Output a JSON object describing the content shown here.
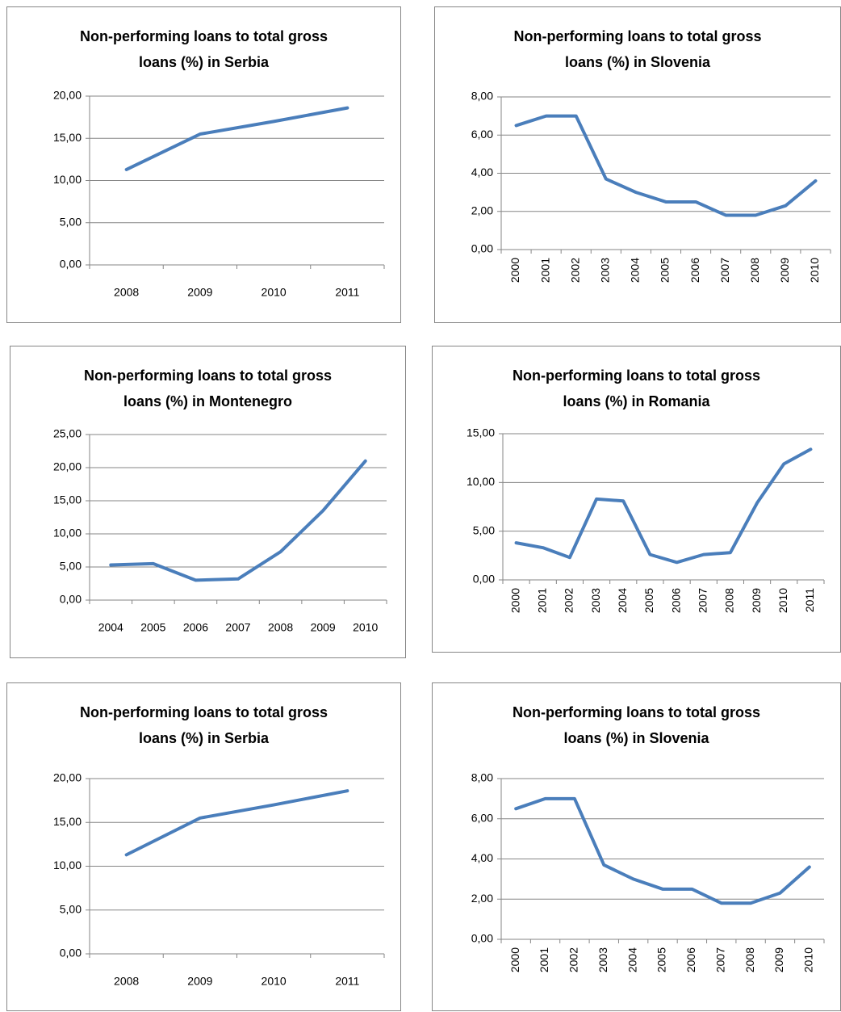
{
  "chart_data": [
    {
      "type": "line",
      "title": "Non-performing loans to total gross loans (%) in Serbia",
      "categories": [
        "2008",
        "2009",
        "2010",
        "2011"
      ],
      "values": [
        11.3,
        15.5,
        17.0,
        18.6
      ],
      "color": "#4a7ebb",
      "ylim": [
        0,
        20
      ],
      "yticks": [
        {
          "value": 0,
          "label": "0,00"
        },
        {
          "value": 5,
          "label": "5,00"
        },
        {
          "value": 10,
          "label": "10,00"
        },
        {
          "value": 15,
          "label": "15,00"
        },
        {
          "value": 20,
          "label": "20,00"
        }
      ],
      "grid": true
    },
    {
      "type": "line",
      "title": "Non-performing loans to total gross loans (%) in Slovenia",
      "categories": [
        "2000",
        "2001",
        "2002",
        "2003",
        "2004",
        "2005",
        "2006",
        "2007",
        "2008",
        "2009",
        "2010"
      ],
      "values": [
        6.5,
        7.0,
        7.0,
        3.7,
        3.0,
        2.5,
        2.5,
        1.8,
        1.8,
        2.3,
        3.6
      ],
      "color": "#4a7ebb",
      "ylim": [
        0,
        8
      ],
      "yticks": [
        {
          "value": 0,
          "label": "0,00"
        },
        {
          "value": 2,
          "label": "2,00"
        },
        {
          "value": 4,
          "label": "4,00"
        },
        {
          "value": 6,
          "label": "6,00"
        },
        {
          "value": 8,
          "label": "8,00"
        }
      ],
      "grid": true
    },
    {
      "type": "line",
      "title": "Non-performing loans to total gross loans (%) in Montenegro",
      "categories": [
        "2004",
        "2005",
        "2006",
        "2007",
        "2008",
        "2009",
        "2010"
      ],
      "values": [
        5.3,
        5.5,
        3.0,
        3.2,
        7.3,
        13.5,
        21.0
      ],
      "color": "#4a7ebb",
      "ylim": [
        0,
        25
      ],
      "yticks": [
        {
          "value": 0,
          "label": "0,00"
        },
        {
          "value": 5,
          "label": "5,00"
        },
        {
          "value": 10,
          "label": "10,00"
        },
        {
          "value": 15,
          "label": "15,00"
        },
        {
          "value": 20,
          "label": "20,00"
        },
        {
          "value": 25,
          "label": "25,00"
        }
      ],
      "grid": true
    },
    {
      "type": "line",
      "title": "Non-performing loans to total gross loans (%) in Romania",
      "categories": [
        "2000",
        "2001",
        "2002",
        "2003",
        "2004",
        "2005",
        "2006",
        "2007",
        "2008",
        "2009",
        "2010",
        "2011"
      ],
      "values": [
        3.8,
        3.3,
        2.3,
        8.3,
        8.1,
        2.6,
        1.8,
        2.6,
        2.8,
        7.9,
        11.9,
        13.4
      ],
      "color": "#4a7ebb",
      "ylim": [
        0,
        15
      ],
      "yticks": [
        {
          "value": 0,
          "label": "0,00"
        },
        {
          "value": 5,
          "label": "5,00"
        },
        {
          "value": 10,
          "label": "10,00"
        },
        {
          "value": 15,
          "label": "15,00"
        }
      ],
      "grid": true
    },
    {
      "type": "line",
      "title": "Non-performing loans to total gross loans (%) in Serbia",
      "categories": [
        "2008",
        "2009",
        "2010",
        "2011"
      ],
      "values": [
        11.3,
        15.5,
        17.0,
        18.6
      ],
      "color": "#4a7ebb",
      "ylim": [
        0,
        20
      ],
      "yticks": [
        {
          "value": 0,
          "label": "0,00"
        },
        {
          "value": 5,
          "label": "5,00"
        },
        {
          "value": 10,
          "label": "10,00"
        },
        {
          "value": 15,
          "label": "15,00"
        },
        {
          "value": 20,
          "label": "20,00"
        }
      ],
      "grid": true
    },
    {
      "type": "line",
      "title": "Non-performing loans to total gross loans (%) in Slovenia",
      "categories": [
        "2000",
        "2001",
        "2002",
        "2003",
        "2004",
        "2005",
        "2006",
        "2007",
        "2008",
        "2009",
        "2010"
      ],
      "values": [
        6.5,
        7.0,
        7.0,
        3.7,
        3.0,
        2.5,
        2.5,
        1.8,
        1.8,
        2.3,
        3.6
      ],
      "color": "#4a7ebb",
      "ylim": [
        0,
        8
      ],
      "yticks": [
        {
          "value": 0,
          "label": "0,00"
        },
        {
          "value": 2,
          "label": "2,00"
        },
        {
          "value": 4,
          "label": "4,00"
        },
        {
          "value": 6,
          "label": "6,00"
        },
        {
          "value": 8,
          "label": "8,00"
        }
      ],
      "grid": true
    }
  ]
}
